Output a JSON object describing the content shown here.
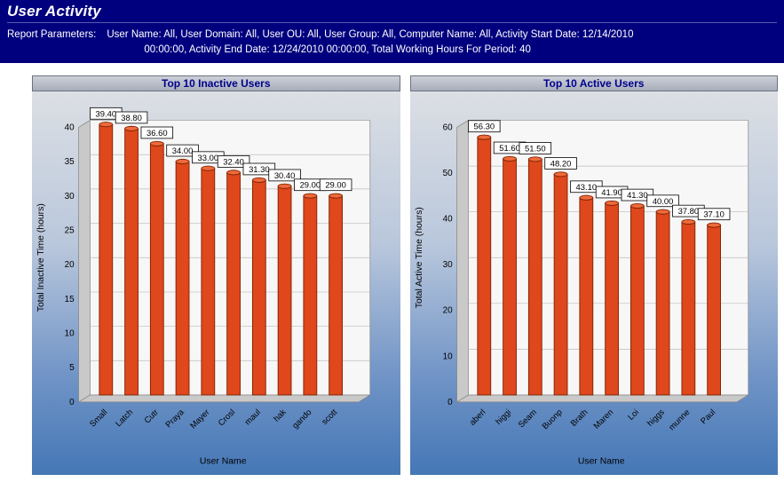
{
  "header": {
    "title": "User Activity",
    "parameters_label": "Report Parameters:",
    "parameters_line1": "User Name:  All, User Domain:  All, User OU:  All, User Group:  All, Computer Name:  All, Activity Start Date:  12/14/2010",
    "parameters_line2": "00:00:00, Activity End Date:  12/24/2010 00:00:00, Total Working Hours For Period:  40"
  },
  "colors": {
    "header_bg": "#00007f",
    "chart_title_text": "#00008b",
    "bar": "#df471c",
    "bar_top": "#ee6a3c",
    "bar_outline": "#7d2200"
  },
  "chart_data": [
    {
      "type": "bar",
      "title": "Top 10 Inactive Users",
      "xlabel": "User Name",
      "ylabel": "Total Inactive Time (hours)",
      "ylim": [
        0,
        40
      ],
      "ytick_step": 5,
      "grid": true,
      "legend": "none",
      "categories": [
        "Small",
        "Latch",
        "Cutr",
        "Praya",
        "Mayer",
        "Crosl",
        "maul",
        "hak",
        "gando",
        "scott"
      ],
      "values": [
        39.4,
        38.8,
        36.6,
        34.0,
        33.0,
        32.4,
        31.3,
        30.4,
        29.0,
        29.0
      ],
      "value_labels": [
        "39.40",
        "38.80",
        "36.60",
        "34.00",
        "33.00",
        "32.40",
        "31.30",
        "30.40",
        "29.00",
        "29.00"
      ]
    },
    {
      "type": "bar",
      "title": "Top 10 Active Users",
      "xlabel": "User Name",
      "ylabel": "Total Active Time (hours)",
      "ylim": [
        0,
        60
      ],
      "ytick_step": 10,
      "grid": true,
      "legend": "none",
      "categories": [
        "aberl",
        "higgi",
        "Seam",
        "Buonp",
        "Brath",
        "Maren",
        "Loi",
        "higgs",
        "munne",
        "Paul"
      ],
      "values": [
        56.3,
        51.6,
        51.5,
        48.2,
        43.1,
        41.9,
        41.3,
        40.0,
        37.8,
        37.1
      ],
      "value_labels": [
        "56.30",
        "51.60",
        "51.50",
        "48.20",
        "43.10",
        "41.90",
        "41.30",
        "40.00",
        "37.80",
        "37.10"
      ]
    }
  ]
}
